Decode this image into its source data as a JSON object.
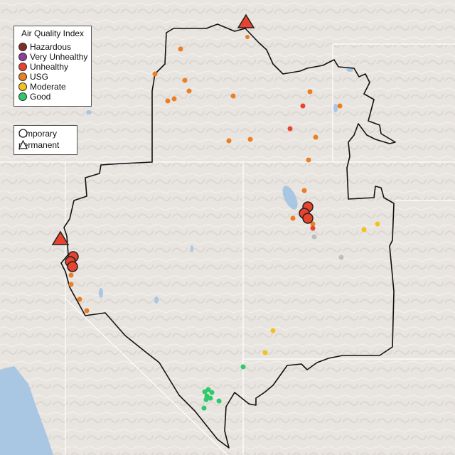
{
  "legend": {
    "title": "Air Quality Index",
    "categories": [
      {
        "label": "Hazardous",
        "color": "#7e2e24"
      },
      {
        "label": "Very Unhealthy",
        "color": "#8f3f97"
      },
      {
        "label": "Unhealthy",
        "color": "#e8432f"
      },
      {
        "label": "USG",
        "color": "#ea7f24"
      },
      {
        "label": "Moderate",
        "color": "#f2c21c"
      },
      {
        "label": "Good",
        "color": "#2ec96a"
      }
    ],
    "monitor_types": [
      {
        "label": "temporary",
        "symbol": "circle"
      },
      {
        "label": "permanent",
        "symbol": "triangle"
      }
    ]
  },
  "map": {
    "background_color": "#e8e4e0",
    "water_color": "#a9c6e3",
    "boundary_color": "#111111",
    "state_line_color": "#ffffff",
    "no_data_color": "#bdbdbd"
  }
}
